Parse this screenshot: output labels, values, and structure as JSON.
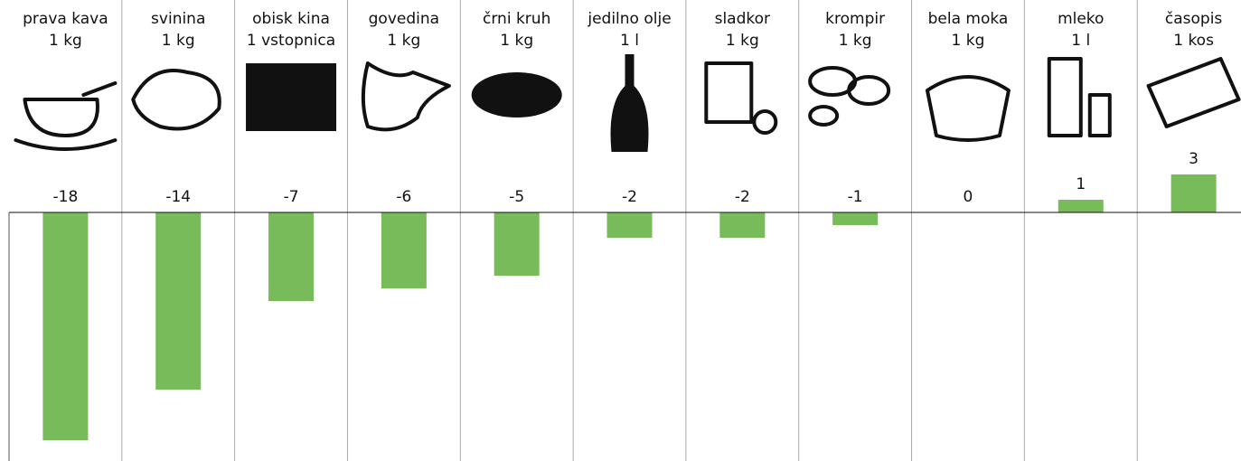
{
  "chart_data": {
    "type": "bar",
    "categories": [
      "prava kava",
      "svinina",
      "obisk kina",
      "govedina",
      "črni kruh",
      "jedilno olje",
      "sladkor",
      "krompir",
      "bela moka",
      "mleko",
      "časopis"
    ],
    "units": [
      "1 kg",
      "1 kg",
      "1 vstopnica",
      "1 kg",
      "1 kg",
      "1 l",
      "1 kg",
      "1 kg",
      "1 kg",
      "1 l",
      "1 kos"
    ],
    "values": [
      -18,
      -14,
      -7,
      -6,
      -5,
      -2,
      -2,
      -1,
      0,
      1,
      3
    ],
    "color": "#77bb5a",
    "ylim": [
      -19.5,
      5
    ]
  }
}
